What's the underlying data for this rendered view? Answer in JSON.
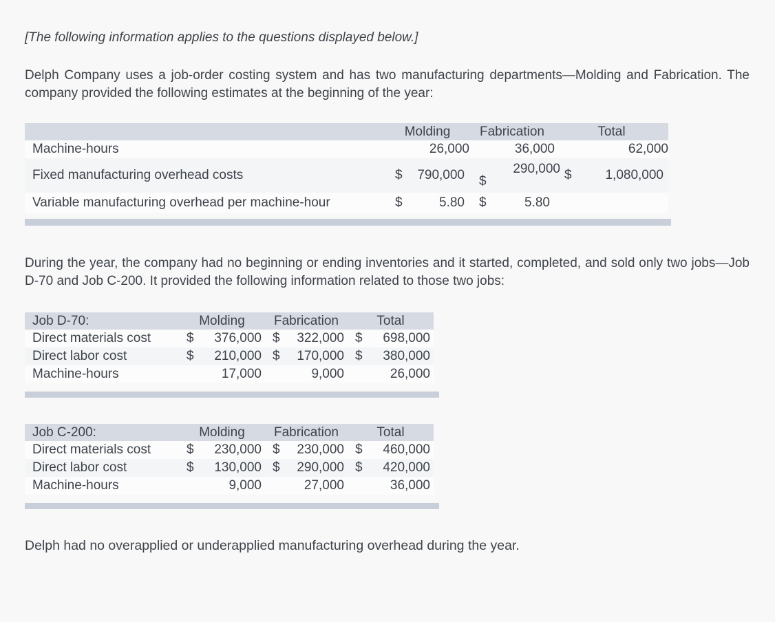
{
  "intro_note": "[The following information applies to the questions displayed below.]",
  "paragraph1": "Delph Company uses a job-order costing system and has two manufacturing departments—Molding and Fabrication. The company provided the following estimates at the beginning of the year:",
  "paragraph2": "During the year, the company had no beginning or ending inventories and it started, completed, and sold only two jobs—Job D-70 and Job C-200. It provided the following information related to those two jobs:",
  "closing": "Delph had no overapplied or underapplied manufacturing overhead during the year.",
  "colors": {
    "page_bg": "#f8f8f8",
    "table_header_bg": "#d6dae2",
    "stripe_row_bg": "#f4f5f7",
    "plain_row_bg": "#fcfcfd",
    "end_bar": "#c9cfda",
    "text": "#3e434a"
  },
  "estimates_table": {
    "columns": [
      "Molding",
      "Fabrication",
      "Total"
    ],
    "rows": [
      {
        "label": "Machine-hours",
        "molding": "26,000",
        "fabrication": "36,000",
        "total": "62,000"
      },
      {
        "label": "Fixed manufacturing overhead costs",
        "molding_cur": "$",
        "molding": "790,000",
        "fabrication_cur": "$",
        "fabrication": "290,000",
        "total_cur": "$",
        "total": "1,080,000"
      },
      {
        "label": "Variable manufacturing overhead per machine-hour",
        "molding_cur": "$",
        "molding": "5.80",
        "fabrication_cur": "$",
        "fabrication": "5.80",
        "total": ""
      }
    ]
  },
  "job_d70_table": {
    "title": "Job D-70:",
    "columns": [
      "Molding",
      "Fabrication",
      "Total"
    ],
    "rows": [
      {
        "label": "Direct materials cost",
        "molding_cur": "$",
        "molding": "376,000",
        "fabrication_cur": "$",
        "fabrication": "322,000",
        "total_cur": "$",
        "total": "698,000"
      },
      {
        "label": "Direct labor cost",
        "molding_cur": "$",
        "molding": "210,000",
        "fabrication_cur": "$",
        "fabrication": "170,000",
        "total_cur": "$",
        "total": "380,000"
      },
      {
        "label": "Machine-hours",
        "molding": "17,000",
        "fabrication": "9,000",
        "total": "26,000"
      }
    ]
  },
  "job_c200_table": {
    "title": "Job C-200:",
    "columns": [
      "Molding",
      "Fabrication",
      "Total"
    ],
    "rows": [
      {
        "label": "Direct materials cost",
        "molding_cur": "$",
        "molding": "230,000",
        "fabrication_cur": "$",
        "fabrication": "230,000",
        "total_cur": "$",
        "total": "460,000"
      },
      {
        "label": "Direct labor cost",
        "molding_cur": "$",
        "molding": "130,000",
        "fabrication_cur": "$",
        "fabrication": "290,000",
        "total_cur": "$",
        "total": "420,000"
      },
      {
        "label": "Machine-hours",
        "molding": "9,000",
        "fabrication": "27,000",
        "total": "36,000"
      }
    ]
  }
}
